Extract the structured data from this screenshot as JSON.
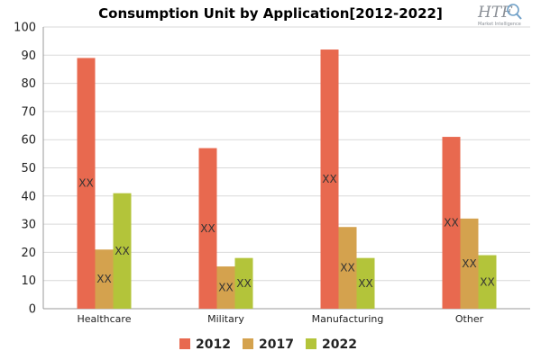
{
  "chart_data": {
    "type": "bar",
    "title": "Consumption Unit by  Application[2012-2022]",
    "categories": [
      "Healthcare",
      "Military",
      "Manufacturing",
      "Other"
    ],
    "series": [
      {
        "name": "2012",
        "color": "#e8694f",
        "values": [
          89,
          57,
          92,
          61
        ],
        "data_labels": [
          "XX",
          "XX",
          "XX",
          "XX"
        ]
      },
      {
        "name": "2017",
        "color": "#d4a24e",
        "values": [
          21,
          15,
          29,
          32
        ],
        "data_labels": [
          "XX",
          "XX",
          "XX",
          "XX"
        ]
      },
      {
        "name": "2022",
        "color": "#b3c43a",
        "values": [
          41,
          18,
          18,
          19
        ],
        "data_labels": [
          "XX",
          "XX",
          "XX",
          "XX"
        ]
      }
    ],
    "ylim": [
      0,
      100
    ],
    "yticks": [
      0,
      10,
      20,
      30,
      40,
      50,
      60,
      70,
      80,
      90,
      100
    ],
    "grid": true,
    "legend_position": "bottom"
  },
  "logo": {
    "text": "HTF",
    "subtext": "Market Intelligence",
    "icon": "magnifier-globe-icon"
  }
}
